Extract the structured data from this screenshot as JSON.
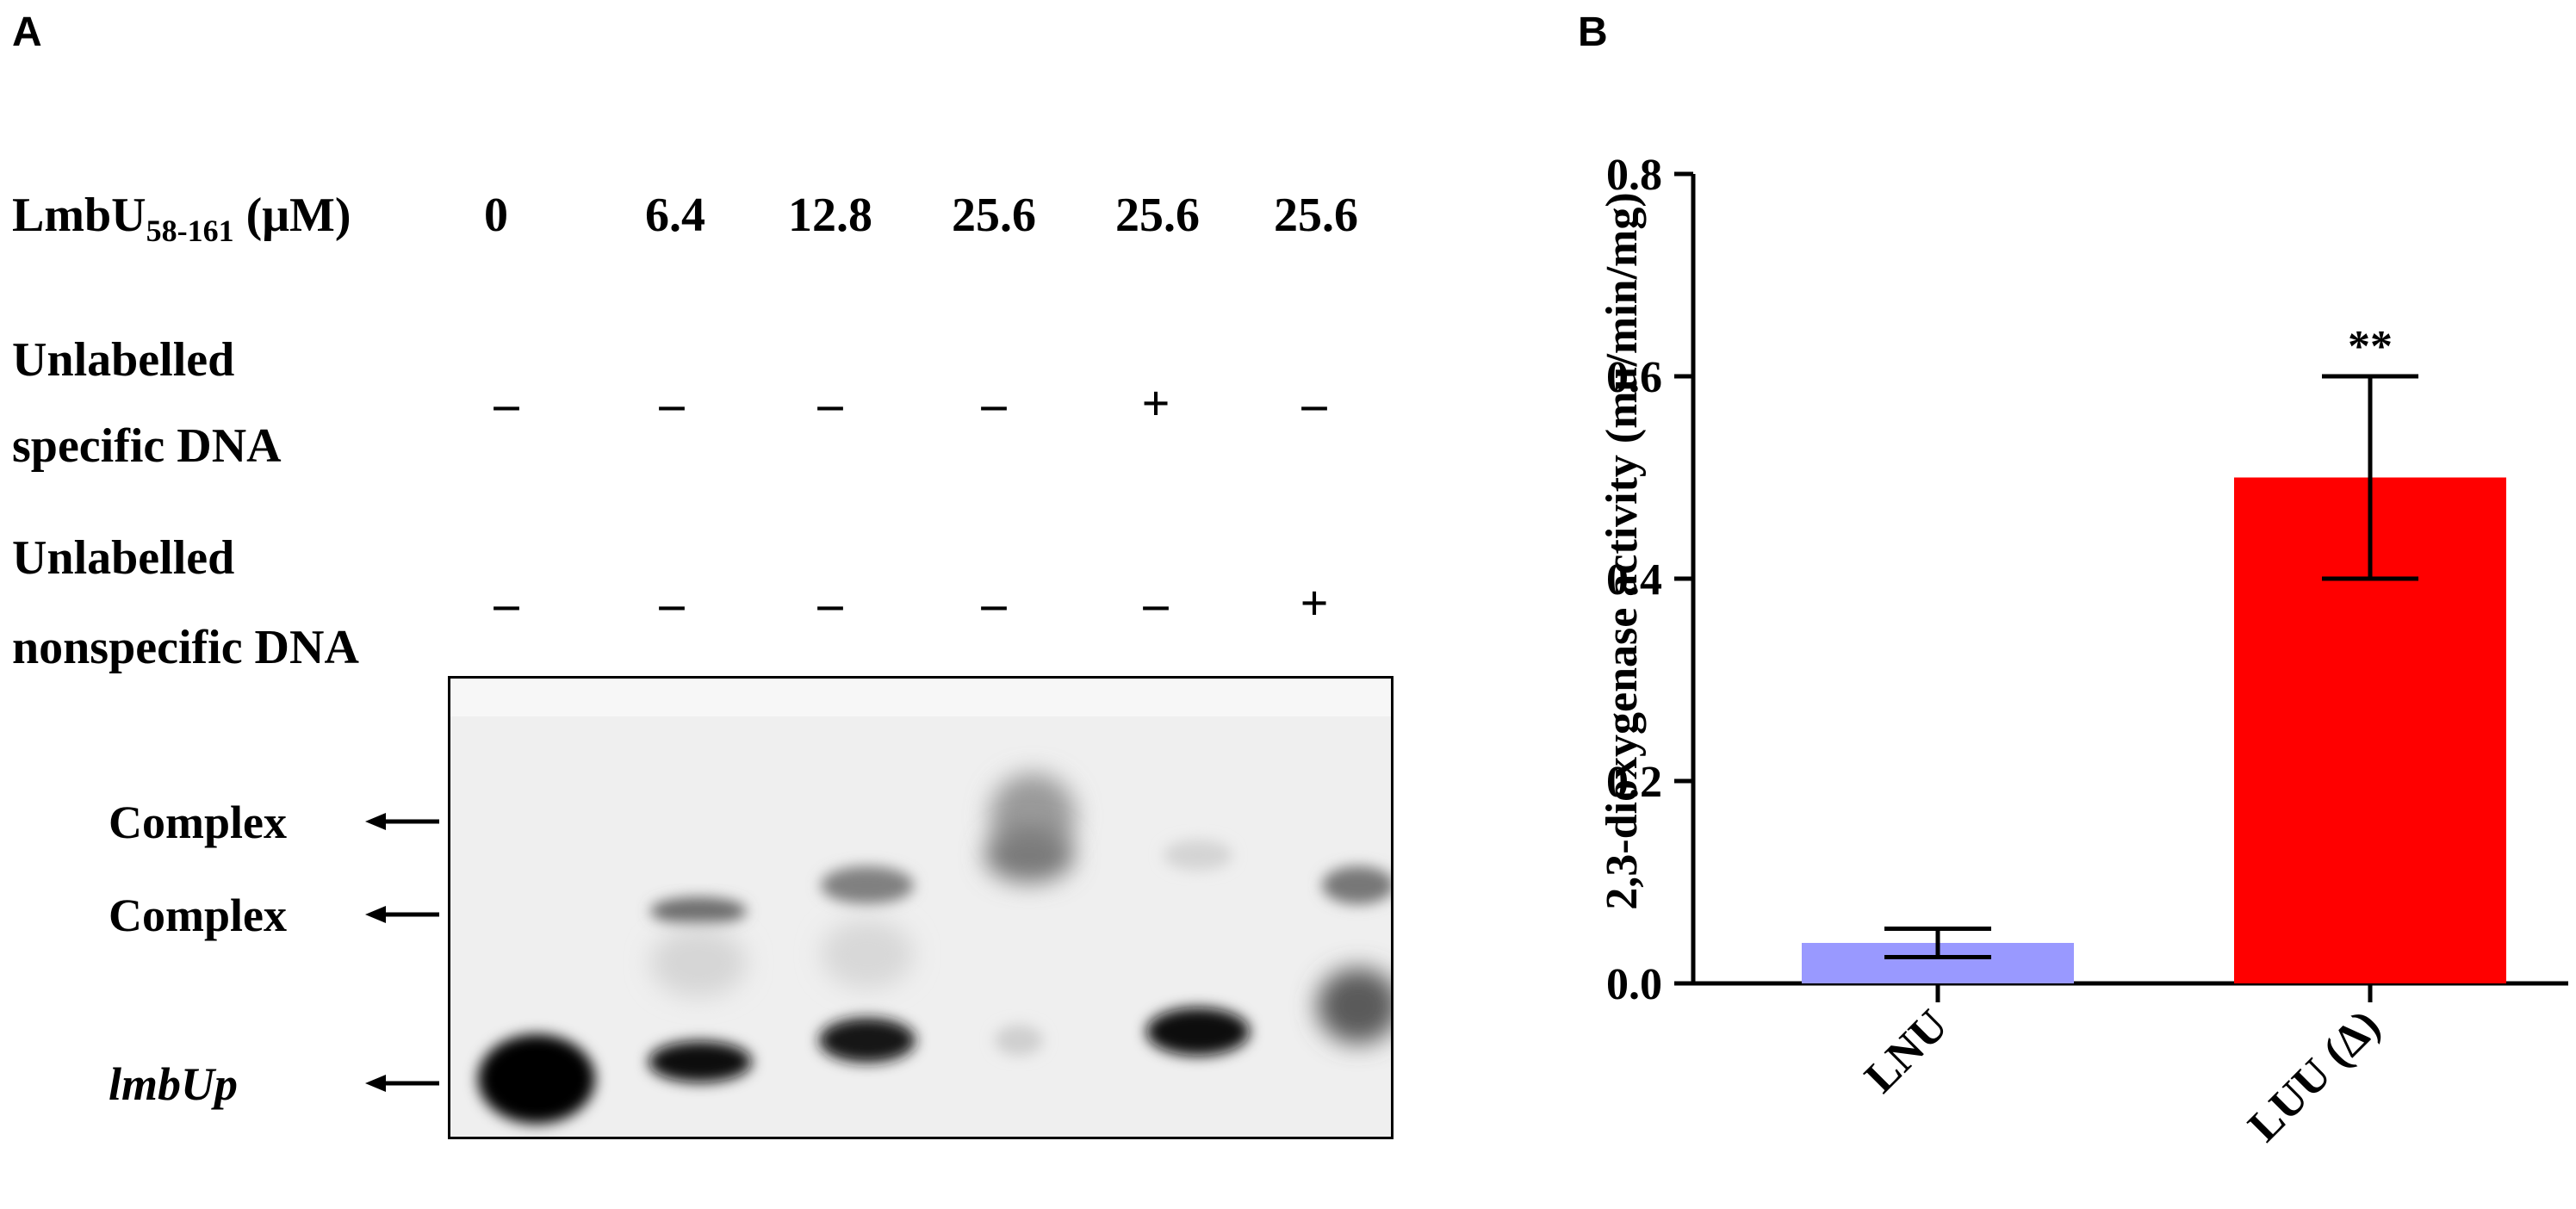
{
  "panel_a": {
    "letter": "A",
    "row1": {
      "label_main": "LmbU",
      "label_sub": "58-161",
      "label_unit": " (μM)",
      "values": [
        "0",
        "6.4",
        "12.8",
        "25.6",
        "25.6",
        "25.6"
      ]
    },
    "row2": {
      "label_line1": "Unlabelled",
      "label_line2": "specific DNA",
      "values": [
        "–",
        "–",
        "–",
        "–",
        "+",
        "–"
      ]
    },
    "row3": {
      "label_line1": "Unlabelled",
      "label_line2": "nonspecific DNA",
      "values": [
        "–",
        "–",
        "–",
        "–",
        "–",
        "+"
      ]
    },
    "band_labels": [
      "Complex",
      "Complex",
      "lmbUp"
    ]
  },
  "panel_b": {
    "letter": "B",
    "significance": "**",
    "colors": {
      "LNU": "#9999ff",
      "LUU": "#ff0000"
    }
  },
  "chart_data": {
    "type": "bar",
    "categories": [
      "LNU",
      "LUU (Δ)"
    ],
    "values": [
      0.04,
      0.5
    ],
    "error": [
      0.014,
      0.1
    ],
    "ylabel": "2,3-dioxygenase activity (mu/min/mg)",
    "xlabel": "",
    "ylim": [
      0,
      0.8
    ],
    "yticks": [
      "0.0",
      "0.2",
      "0.4",
      "0.6",
      "0.8"
    ],
    "grid": false,
    "annotations": [
      {
        "category": "LUU (Δ)",
        "text": "**"
      }
    ]
  }
}
